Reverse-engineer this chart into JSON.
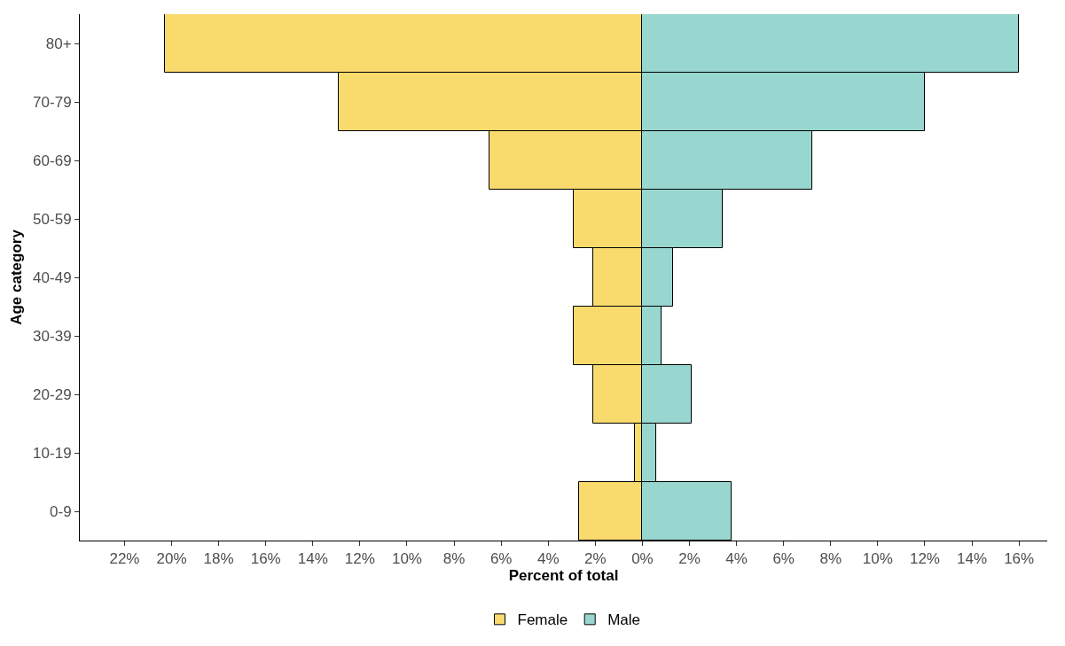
{
  "chart_data": {
    "type": "bar",
    "orientation": "horizontal",
    "stacked": true,
    "xlabel": "Percent of total",
    "ylabel": "Age category",
    "categories": [
      "80+",
      "70-79",
      "60-69",
      "50-59",
      "40-49",
      "30-39",
      "20-29",
      "10-19",
      "0-9"
    ],
    "series": [
      {
        "name": "Female",
        "color": "#f9db6d",
        "values": [
          -20.3,
          -12.9,
          -6.5,
          -2.9,
          -2.1,
          -2.9,
          -2.1,
          -0.3,
          -2.7
        ]
      },
      {
        "name": "Male",
        "color": "#98d7cf",
        "values": [
          16.0,
          12.0,
          7.2,
          3.4,
          1.3,
          0.8,
          2.1,
          0.6,
          3.8
        ]
      }
    ],
    "xlim": [
      -23.9,
      17.2
    ],
    "xticks": [
      {
        "value": -22,
        "label": "22%"
      },
      {
        "value": -20,
        "label": "20%"
      },
      {
        "value": -18,
        "label": "18%"
      },
      {
        "value": -16,
        "label": "16%"
      },
      {
        "value": -14,
        "label": "14%"
      },
      {
        "value": -12,
        "label": "12%"
      },
      {
        "value": -10,
        "label": "10%"
      },
      {
        "value": -8,
        "label": "8%"
      },
      {
        "value": -6,
        "label": "6%"
      },
      {
        "value": -4,
        "label": "4%"
      },
      {
        "value": -2,
        "label": "2%"
      },
      {
        "value": 0,
        "label": "0%"
      },
      {
        "value": 2,
        "label": "2%"
      },
      {
        "value": 4,
        "label": "4%"
      },
      {
        "value": 6,
        "label": "6%"
      },
      {
        "value": 8,
        "label": "8%"
      },
      {
        "value": 10,
        "label": "10%"
      },
      {
        "value": 12,
        "label": "12%"
      },
      {
        "value": 14,
        "label": "14%"
      },
      {
        "value": 16,
        "label": "16%"
      }
    ],
    "legend": "bottom"
  }
}
